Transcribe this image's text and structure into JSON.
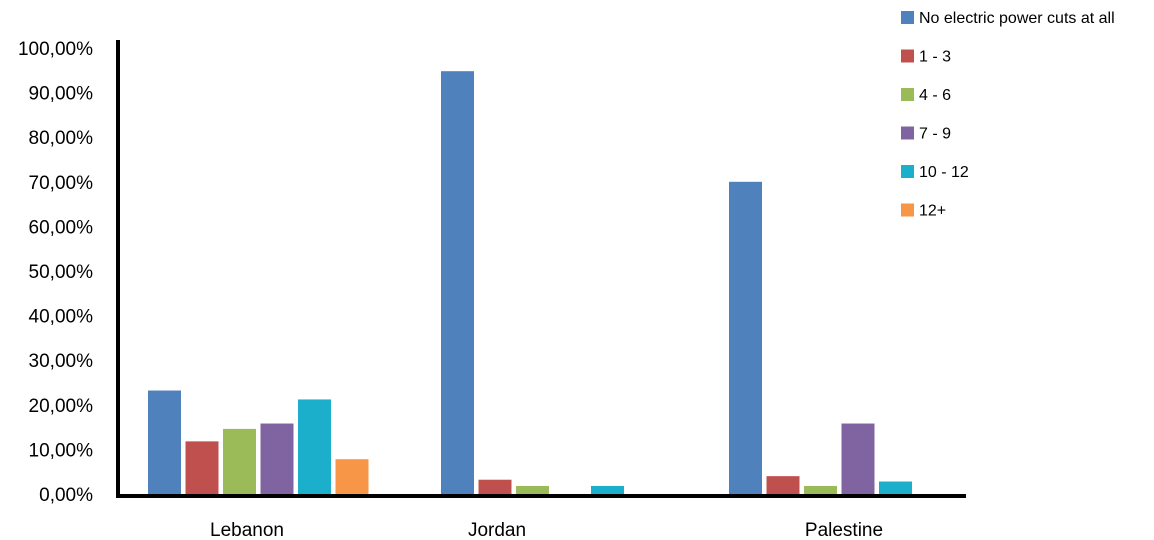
{
  "chart_data": {
    "type": "bar",
    "categories": [
      "Lebanon",
      "Jordan",
      "Palestine"
    ],
    "series": [
      {
        "name": "No electric power cuts at all",
        "color": "#4F81BD",
        "values": [
          23.2,
          94.8,
          70.0
        ]
      },
      {
        "name": "1 - 3",
        "color": "#C0504D",
        "values": [
          11.8,
          3.2,
          4.0
        ]
      },
      {
        "name": "4 - 6",
        "color": "#9BBB59",
        "values": [
          14.6,
          1.8,
          1.8
        ]
      },
      {
        "name": "7 - 9",
        "color": "#8064A2",
        "values": [
          15.8,
          0,
          15.8
        ]
      },
      {
        "name": "10 - 12",
        "color": "#1BAFCB",
        "values": [
          21.2,
          1.8,
          2.8
        ]
      },
      {
        "name": "12+",
        "color": "#F79646",
        "values": [
          7.8,
          0,
          0
        ]
      }
    ],
    "yticks": [
      "0,00%",
      "10,00%",
      "20,00%",
      "30,00%",
      "40,00%",
      "50,00%",
      "60,00%",
      "70,00%",
      "80,00%",
      "90,00%",
      "100,00%"
    ],
    "ylim": [
      0,
      100
    ],
    "title": "",
    "xlabel": "",
    "ylabel": "",
    "legend_position": "top-right",
    "grid": false
  }
}
